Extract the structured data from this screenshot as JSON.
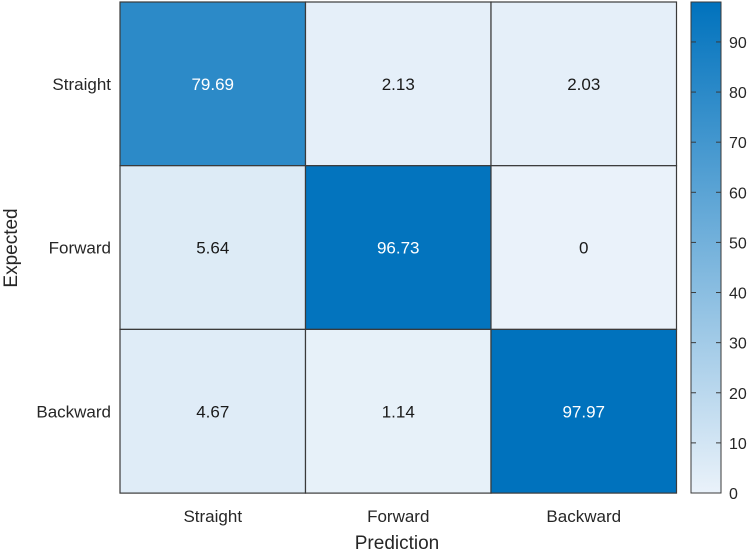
{
  "chart_data": {
    "type": "heatmap",
    "title": "",
    "xlabel": "Prediction",
    "ylabel": "Expected",
    "x_categories": [
      "Straight",
      "Forward",
      "Backward"
    ],
    "y_categories": [
      "Straight",
      "Forward",
      "Backward"
    ],
    "values": [
      [
        79.69,
        2.13,
        2.03
      ],
      [
        5.64,
        96.73,
        0
      ],
      [
        4.67,
        1.14,
        97.97
      ]
    ],
    "cell_labels": [
      [
        "79.69",
        "2.13",
        "2.03"
      ],
      [
        "5.64",
        "96.73",
        "0"
      ],
      [
        "4.67",
        "1.14",
        "97.97"
      ]
    ],
    "colorbar": {
      "min": 0,
      "max": 97.97,
      "ticks": [
        0,
        10,
        20,
        30,
        40,
        50,
        60,
        70,
        80,
        90
      ],
      "tick_labels": [
        "0",
        "10",
        "20",
        "30",
        "40",
        "50",
        "60",
        "70",
        "80",
        "90"
      ],
      "color_low": "#eaf2fa",
      "color_high": "#0072bd"
    },
    "grid": true,
    "legend": "colorbar-right"
  }
}
